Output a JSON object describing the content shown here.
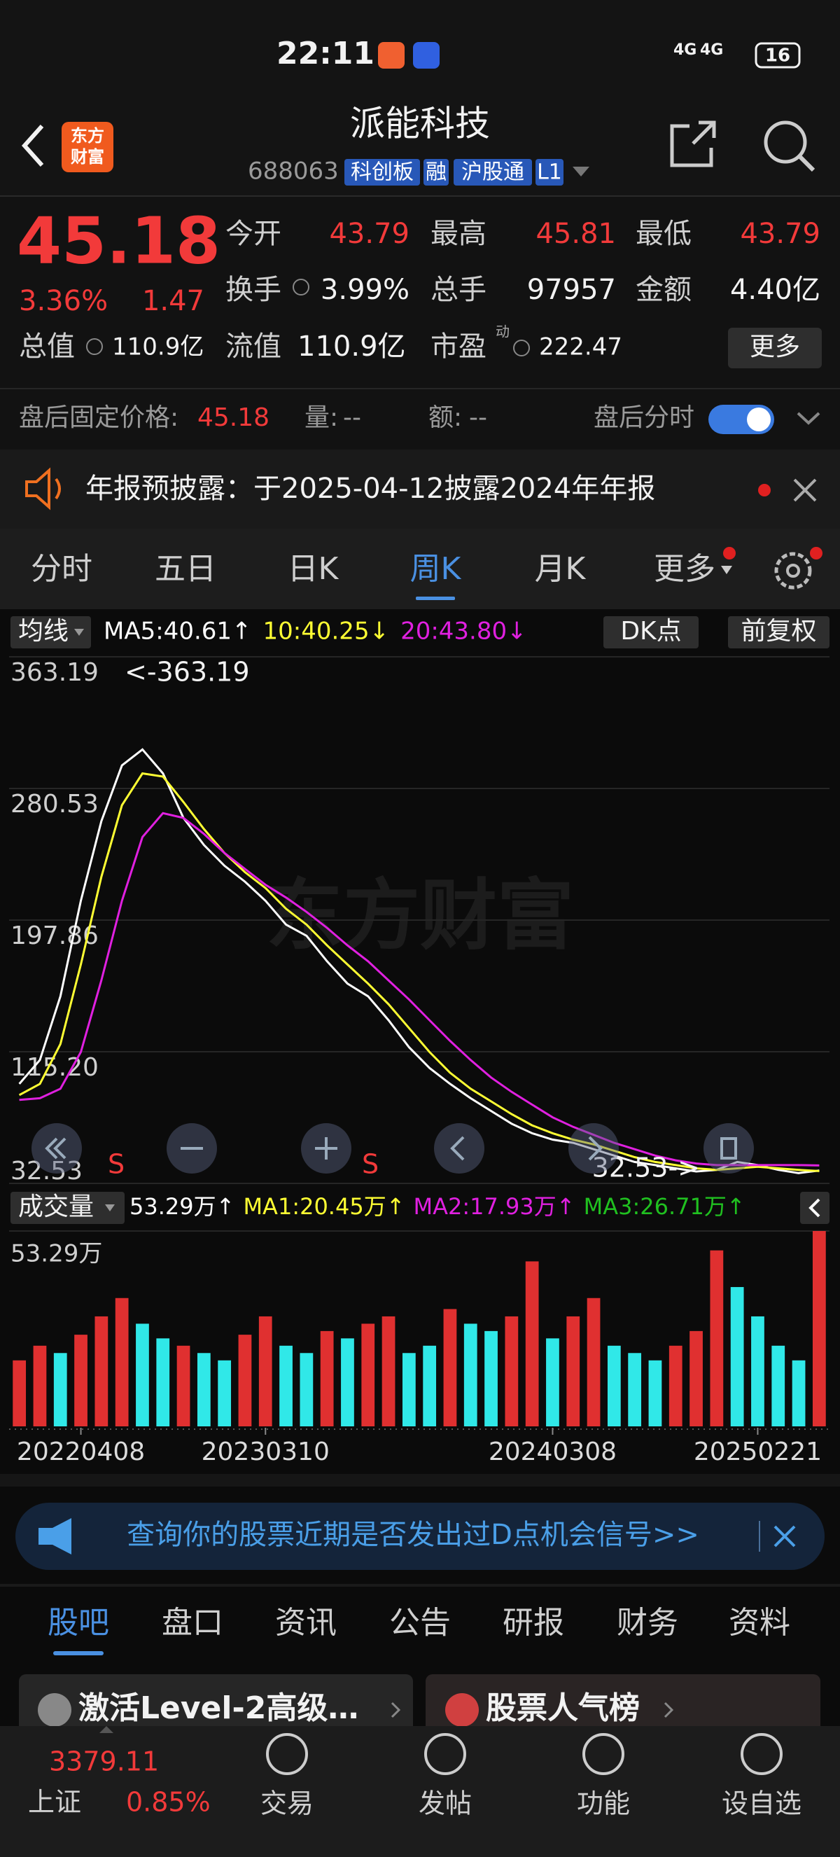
{
  "status": {
    "time": "22:11",
    "network": [
      "4G",
      "4G"
    ],
    "battery": "16"
  },
  "header": {
    "logo": [
      "东方",
      "财富"
    ],
    "title": "派能科技",
    "code": "688063",
    "tags": [
      "科创板",
      "融",
      "沪股通",
      "L1"
    ]
  },
  "quote": {
    "price": "45.18",
    "change_pct": "3.36%",
    "change": "1.47",
    "stats": [
      {
        "label": "今开",
        "value": "43.79"
      },
      {
        "label": "最高",
        "value": "45.81"
      },
      {
        "label": "最低",
        "value": "43.79"
      },
      {
        "label": "换手",
        "value": "3.99%"
      },
      {
        "label": "总手",
        "value": "97957"
      },
      {
        "label": "金额",
        "value": "4.40亿"
      },
      {
        "label": "总值",
        "value": "110.9亿"
      },
      {
        "label": "流值",
        "value": "110.9亿"
      },
      {
        "label": "市盈",
        "value": "222.47"
      }
    ],
    "pe_superscript": "动",
    "more": "更多"
  },
  "after_hours": {
    "price_label": "盘后固定价格:",
    "price": "45.18",
    "volume_label": "量:",
    "volume": "--",
    "amount_label": "额:",
    "amount": "--",
    "toggle_label": "盘后分时"
  },
  "notice": {
    "text": "年报预披露：于2025-04-12披露2024年年报"
  },
  "tabs": {
    "items": [
      "分时",
      "五日",
      "日K",
      "周K",
      "月K",
      "更多"
    ],
    "active": 3
  },
  "chart_data": [
    {
      "type": "line",
      "indicator": "均线",
      "buttons": [
        "DK点",
        "前复权"
      ],
      "watermark": "东方财富",
      "high_label": "<-363.19",
      "low_label": "32.53->",
      "signals": [
        "S",
        "S"
      ],
      "ylim": [
        32.53,
        363.19
      ],
      "yticks": [
        363.19,
        280.53,
        197.86,
        {
          "value": 115.2,
          "label": "115.20"
        },
        32.53
      ],
      "grid": true,
      "series": [
        {
          "name": "MA5:40.61↑",
          "color": "#ffffff",
          "values": [
            95,
            110,
            150,
            210,
            260,
            295,
            305,
            290,
            262,
            245,
            232,
            222,
            210,
            195,
            188,
            172,
            158,
            150,
            135,
            118,
            105,
            95,
            86,
            78,
            70,
            64,
            60,
            58,
            54,
            50,
            46,
            44,
            42,
            40,
            41,
            46,
            44,
            41,
            39,
            40.61
          ]
        },
        {
          "name": "10:40.25↓",
          "color": "#ffff33",
          "values": [
            88,
            95,
            120,
            170,
            225,
            270,
            290,
            288,
            272,
            255,
            240,
            228,
            218,
            205,
            195,
            182,
            170,
            158,
            145,
            130,
            115,
            102,
            92,
            84,
            76,
            69,
            64,
            60,
            57,
            53,
            49,
            46,
            44,
            42,
            41,
            42,
            43,
            42,
            41,
            40.25
          ]
        },
        {
          "name": "20:43.80↓",
          "color": "#e020e0",
          "values": [
            85,
            86,
            92,
            115,
            160,
            210,
            250,
            265,
            262,
            252,
            240,
            230,
            220,
            212,
            203,
            193,
            182,
            172,
            160,
            148,
            135,
            122,
            110,
            99,
            90,
            82,
            74,
            68,
            63,
            58,
            54,
            50,
            47,
            45,
            44,
            44,
            44,
            44,
            44,
            43.8
          ]
        }
      ]
    },
    {
      "type": "bar",
      "indicator": "成交量",
      "legend": [
        "53.29万↑",
        "MA1:20.45万↑",
        "MA2:17.93万↑",
        "MA3:26.71万↑"
      ],
      "legend_colors": [
        "#ffffff",
        "#ffff33",
        "#e020e0",
        "#20c020"
      ],
      "ylim": [
        0,
        53.29
      ],
      "yticks": [
        {
          "value": 53.29,
          "label": "53.29万"
        }
      ],
      "values": [
        18,
        22,
        20,
        25,
        30,
        35,
        28,
        24,
        22,
        20,
        18,
        25,
        30,
        22,
        20,
        26,
        24,
        28,
        30,
        20,
        22,
        32,
        28,
        26,
        30,
        45,
        24,
        30,
        35,
        22,
        20,
        18,
        22,
        26,
        48,
        38,
        30,
        22,
        18,
        53.29
      ],
      "up": [
        true,
        true,
        false,
        true,
        true,
        true,
        false,
        false,
        true,
        false,
        false,
        true,
        true,
        false,
        false,
        true,
        false,
        true,
        true,
        false,
        false,
        true,
        false,
        false,
        true,
        true,
        false,
        true,
        true,
        false,
        false,
        false,
        true,
        true,
        true,
        false,
        false,
        false,
        false,
        true
      ],
      "up_color": "#e03030",
      "down_color": "#30e8e8",
      "xticks": [
        {
          "value": 3,
          "label": "20220408"
        },
        {
          "value": 12,
          "label": "20230310"
        },
        {
          "value": 26,
          "label": "20240308"
        },
        {
          "value": 36,
          "label": "20250221"
        }
      ]
    }
  ],
  "banner": "查询你的股票近期是否发出过D点机会信号>>",
  "sub_tabs": {
    "items": [
      "股吧",
      "盘口",
      "资讯",
      "公告",
      "研报",
      "财务",
      "资料"
    ],
    "active": 0
  },
  "cards": [
    "激活Level-2高级…",
    "股票人气榜"
  ],
  "index": {
    "value": "3379.11",
    "name": "上证",
    "change": "0.85%"
  },
  "nav": [
    "交易",
    "发帖",
    "功能",
    "设自选"
  ]
}
